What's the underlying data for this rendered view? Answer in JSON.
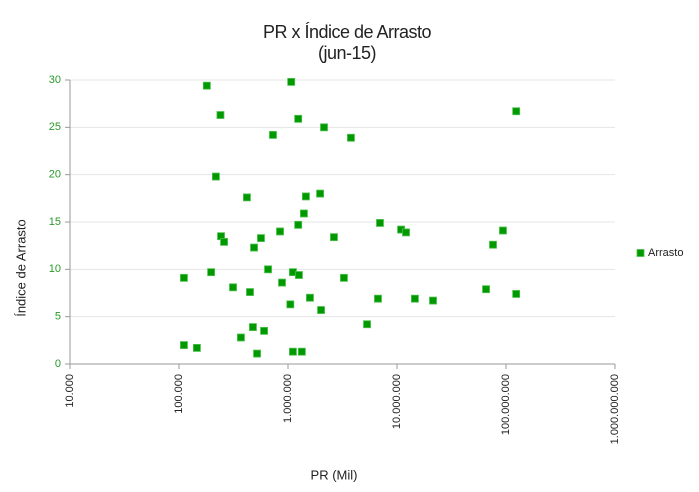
{
  "chart_data": {
    "type": "scatter",
    "title": "PR x Índice de Arrasto",
    "subtitle": "(jun-15)",
    "x_label": "PR (Mil)",
    "y_label": "Índice de Arrasto",
    "xscale": "log",
    "grid": true,
    "legend": "right",
    "xlim": [
      10000,
      1000000000
    ],
    "xticks": [
      {
        "value": 10000,
        "label": "10.000"
      },
      {
        "value": 100000,
        "label": "100.000"
      },
      {
        "value": 1000000,
        "label": "1.000.000"
      },
      {
        "value": 10000000,
        "label": "10.000.000"
      },
      {
        "value": 100000000,
        "label": "100.000.000"
      },
      {
        "value": 1000000000,
        "label": "1.000.000.000"
      }
    ],
    "ylim": [
      0,
      30
    ],
    "yticks": [
      0,
      5,
      10,
      15,
      20,
      25,
      30
    ],
    "series": [
      {
        "name": "Arrasto",
        "color": "#009900",
        "x": [
          180000,
          1070000,
          240000,
          1240000,
          2140000,
          728000,
          3780000,
          124000000,
          218000,
          420000,
          1460000,
          1970000,
          1400000,
          1240000,
          845000,
          243000,
          259000,
          565000,
          488000,
          2640000,
          6980000,
          10900000,
          12100000,
          93800000,
          76000000,
          111000,
          197000,
          656000,
          1110000,
          1260000,
          881000,
          313000,
          448000,
          3260000,
          1590000,
          1050000,
          2010000,
          6690000,
          14600000,
          21400000,
          65600000,
          124000000,
          5310000,
          477000,
          603000,
          370000,
          111000,
          146000,
          520000,
          1110000,
          1340000
        ],
        "values": [
          29.4,
          29.8,
          26.3,
          25.9,
          25.0,
          24.2,
          23.9,
          26.7,
          19.8,
          17.6,
          17.7,
          18.0,
          15.9,
          14.7,
          14.0,
          13.5,
          12.9,
          13.3,
          12.3,
          13.4,
          14.9,
          14.2,
          13.9,
          14.1,
          12.6,
          9.1,
          9.7,
          10.0,
          9.7,
          9.4,
          8.6,
          8.1,
          7.6,
          9.1,
          7.0,
          6.3,
          5.7,
          6.9,
          6.9,
          6.7,
          7.9,
          7.4,
          4.2,
          3.9,
          3.5,
          2.8,
          2.0,
          1.7,
          1.1,
          1.3,
          1.3
        ]
      }
    ]
  }
}
